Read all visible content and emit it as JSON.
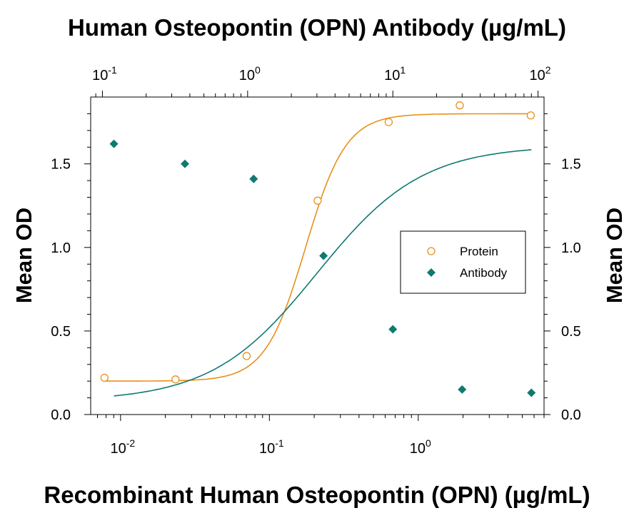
{
  "chart_data": {
    "type": "scatter",
    "title": "Human Osteopontin (OPN) Antibody (µg/mL)",
    "xlabel": "Recombinant Human Osteopontin (OPN) (µg/mL)",
    "ylabel": "Mean OD",
    "ylabel_right": "Mean OD",
    "x_scale": "log",
    "xlim": [
      0.0063,
      7.0
    ],
    "x_ticks": [
      {
        "value": 0.01,
        "base": "10",
        "exp": "-2"
      },
      {
        "value": 0.1,
        "base": "10",
        "exp": "-1"
      },
      {
        "value": 1,
        "base": "10",
        "exp": "0"
      }
    ],
    "top_axis": {
      "label": "Human Osteopontin (OPN) Antibody (µg/mL)",
      "scale": "log",
      "xlim": [
        0.083,
        110
      ],
      "ticks": [
        {
          "value": 0.1,
          "base": "10",
          "exp": "-1"
        },
        {
          "value": 1,
          "base": "10",
          "exp": "0"
        },
        {
          "value": 10,
          "base": "10",
          "exp": "1"
        },
        {
          "value": 100,
          "base": "10",
          "exp": "2"
        }
      ]
    },
    "ylim": [
      0.0,
      1.9
    ],
    "y_ticks": [
      "0.0",
      "0.5",
      "1.0",
      "1.5"
    ],
    "legend_position": "center-right",
    "grid": false,
    "series": [
      {
        "name": "Protein",
        "axis": "bottom",
        "marker": "open-circle",
        "color": "#e8901c",
        "x": [
          0.0078,
          0.0234,
          0.0703,
          0.211,
          0.633,
          1.9,
          5.7
        ],
        "y": [
          0.22,
          0.21,
          0.35,
          1.28,
          1.75,
          1.85,
          1.79
        ],
        "fit": {
          "bottom": 0.2,
          "top": 1.8,
          "ec50": 0.175,
          "hill": 3.2
        }
      },
      {
        "name": "Antibody",
        "axis": "top",
        "marker": "filled-diamond",
        "color": "#0e7a70",
        "x": [
          0.12,
          0.37,
          1.1,
          3.33,
          10,
          30,
          90
        ],
        "y": [
          1.62,
          1.5,
          1.41,
          0.95,
          0.51,
          0.15,
          0.13
        ],
        "fit": {
          "bottom": 0.08,
          "top": 1.61,
          "ec50": 3.0,
          "hill": 1.2
        }
      }
    ]
  }
}
